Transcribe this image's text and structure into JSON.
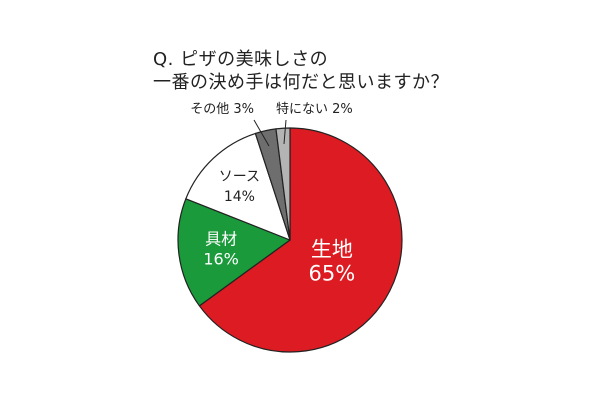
{
  "question": {
    "line1": "Q. ピザの美味しさの",
    "line2": "一番の決め手は何だと思いますか？"
  },
  "colors": {
    "生地": "#dc1c22",
    "具材": "#1a9a3a",
    "ソース": "#ffffff",
    "その他": "#6e6e6e",
    "特にない": "#b4b4b4",
    "outline": "#222222"
  },
  "chart_data": {
    "type": "pie",
    "title": "Q. ピザの美味しさの一番の決め手は何だと思いますか？",
    "start": "12 o'clock, clockwise",
    "slices": [
      {
        "label": "生地",
        "value": 65,
        "value_label": "65%",
        "color": "#dc1c22",
        "label_color": "#ffffff"
      },
      {
        "label": "具材",
        "value": 16,
        "value_label": "16%",
        "color": "#1a9a3a",
        "label_color": "#ffffff"
      },
      {
        "label": "ソース",
        "value": 14,
        "value_label": "14%",
        "color": "#ffffff",
        "label_color": "#222222"
      },
      {
        "label": "その他",
        "value": 3,
        "value_label": "3%",
        "color": "#6e6e6e",
        "label_color": "#222222",
        "callout": "その他 3%"
      },
      {
        "label": "特にない",
        "value": 2,
        "value_label": "2%",
        "color": "#b4b4b4",
        "label_color": "#222222",
        "callout": "特にない 2%"
      }
    ]
  }
}
